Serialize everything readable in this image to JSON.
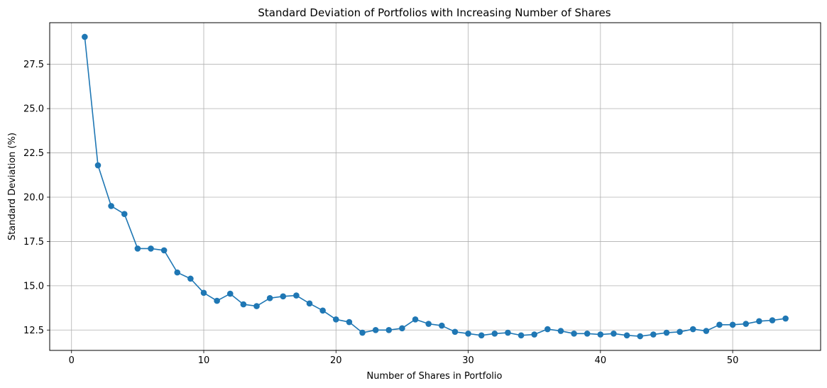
{
  "chart_data": {
    "type": "line",
    "title": "Standard Deviation of Portfolios with Increasing Number of Shares",
    "xlabel": "Number of Shares in Portfolio",
    "ylabel": "Standard Deviation (%)",
    "xlim": [
      -1.65,
      56.65
    ],
    "ylim": [
      11.35,
      29.85
    ],
    "xticks": [
      0,
      10,
      20,
      30,
      40,
      50
    ],
    "xtick_labels": [
      "0",
      "10",
      "20",
      "30",
      "40",
      "50"
    ],
    "yticks": [
      12.5,
      15.0,
      17.5,
      20.0,
      22.5,
      25.0,
      27.5
    ],
    "ytick_labels": [
      "12.5",
      "15.0",
      "17.5",
      "20.0",
      "22.5",
      "25.0",
      "27.5"
    ],
    "grid": true,
    "line_color": "#1f77b4",
    "series": [
      {
        "x": [
          1,
          2,
          3,
          4,
          5,
          6,
          7,
          8,
          9,
          10,
          11,
          12,
          13,
          14,
          15,
          16,
          17,
          18,
          19,
          20,
          21,
          22,
          23,
          24,
          25,
          26,
          27,
          28,
          29,
          30,
          31,
          32,
          33,
          34,
          35,
          36,
          37,
          38,
          39,
          40,
          41,
          42,
          43,
          44,
          45,
          46,
          47,
          48,
          49,
          50,
          51,
          52,
          53,
          54
        ],
        "values": [
          29.05,
          21.8,
          19.5,
          19.05,
          17.1,
          17.1,
          17.0,
          15.75,
          15.4,
          14.6,
          14.15,
          14.55,
          13.95,
          13.85,
          14.3,
          14.4,
          14.45,
          14.0,
          13.6,
          13.1,
          12.95,
          12.35,
          12.5,
          12.5,
          12.6,
          13.1,
          12.85,
          12.75,
          12.4,
          12.3,
          12.2,
          12.3,
          12.35,
          12.2,
          12.25,
          12.55,
          12.45,
          12.3,
          12.3,
          12.25,
          12.3,
          12.2,
          12.15,
          12.25,
          12.35,
          12.4,
          12.55,
          12.45,
          12.8,
          12.8,
          12.85,
          13.0,
          13.05,
          13.15
        ]
      }
    ]
  }
}
